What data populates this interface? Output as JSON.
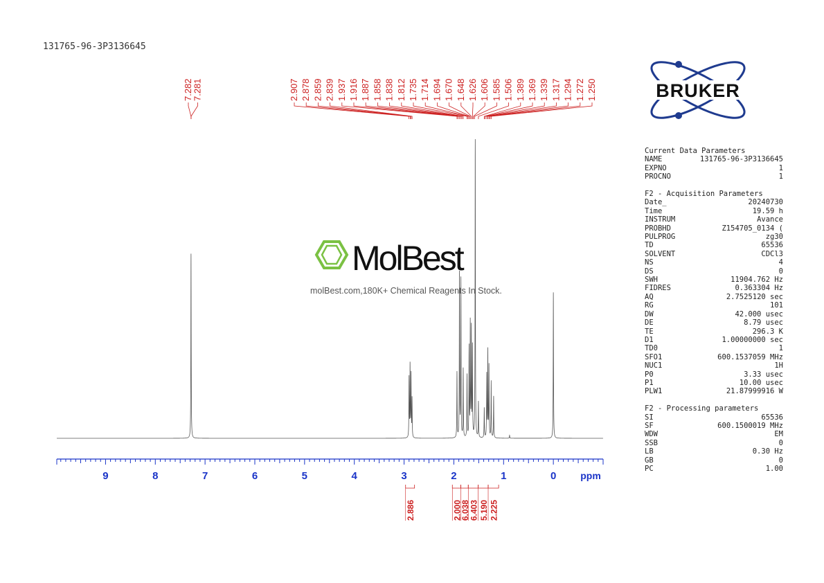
{
  "header": {
    "sample_id": "131765-96-3P3136645"
  },
  "watermark": {
    "brand": "MolBest",
    "tagline": "molBest.com,180K+ Chemical Reagents In Stock."
  },
  "logo": {
    "text": "BRUKER",
    "color": "#1f3b8f"
  },
  "colors": {
    "peak_label": "#cc1f1f",
    "axis": "#1a34c8",
    "spectrum": "#555555"
  },
  "chart_data": {
    "type": "line",
    "title": "",
    "xlabel": "ppm",
    "ylabel": "",
    "xlim": [
      9.98,
      -1.0
    ],
    "xlim_note": "reversed ppm axis",
    "x_ticks": [
      "9",
      "8",
      "7",
      "6",
      "5",
      "4",
      "3",
      "2",
      "1",
      "0"
    ],
    "grid": false,
    "peak_labels": [
      {
        "group": "aromatic",
        "values": [
          "7.282",
          "7.281"
        ]
      },
      {
        "group": "aliphatic",
        "values": [
          "2.907",
          "2.878",
          "2.859",
          "2.839",
          "1.937",
          "1.916",
          "1.887",
          "1.858",
          "1.838",
          "1.812",
          "1.735",
          "1.714",
          "1.694",
          "1.670",
          "1.648",
          "1.626",
          "1.606",
          "1.585",
          "1.506",
          "1.389",
          "1.369",
          "1.339",
          "1.317",
          "1.294",
          "1.272",
          "1.250"
        ]
      }
    ],
    "integrals": [
      {
        "label": "2.886",
        "from": 2.97,
        "to": 2.79
      },
      {
        "label": "2.000",
        "from": 2.03,
        "to": 1.86
      },
      {
        "label": "6.038",
        "from": 1.86,
        "to": 1.71
      },
      {
        "label": "6.403",
        "from": 1.71,
        "to": 1.51
      },
      {
        "label": "5.190",
        "from": 1.51,
        "to": 1.31
      },
      {
        "label": "2.225",
        "from": 1.31,
        "to": 1.1
      }
    ],
    "series": [
      {
        "values_are": "relative peak intensity (tallest = 1.0)",
        "peaks": [
          {
            "x": 7.282,
            "y": 0.62
          },
          {
            "x": 0.0,
            "y": 0.49
          },
          {
            "x": 2.9,
            "y": 0.2
          },
          {
            "x": 2.88,
            "y": 0.24
          },
          {
            "x": 2.86,
            "y": 0.21
          },
          {
            "x": 2.84,
            "y": 0.13
          },
          {
            "x": 1.937,
            "y": 0.22
          },
          {
            "x": 1.887,
            "y": 0.55
          },
          {
            "x": 1.858,
            "y": 0.53
          },
          {
            "x": 1.812,
            "y": 0.23
          },
          {
            "x": 1.735,
            "y": 0.21
          },
          {
            "x": 1.694,
            "y": 0.3
          },
          {
            "x": 1.67,
            "y": 0.38
          },
          {
            "x": 1.648,
            "y": 0.36
          },
          {
            "x": 1.626,
            "y": 0.3
          },
          {
            "x": 1.57,
            "y": 1.0
          },
          {
            "x": 1.506,
            "y": 0.12
          },
          {
            "x": 1.389,
            "y": 0.1
          },
          {
            "x": 1.339,
            "y": 0.21
          },
          {
            "x": 1.317,
            "y": 0.29
          },
          {
            "x": 1.294,
            "y": 0.24
          },
          {
            "x": 1.25,
            "y": 0.19
          },
          {
            "x": 1.2,
            "y": 0.14
          },
          {
            "x": 0.88,
            "y": 0.01
          }
        ]
      }
    ]
  },
  "parameters": {
    "sections": [
      {
        "title": "Current Data Parameters",
        "rows": [
          {
            "k": "NAME",
            "v": "131765-96-3P3136645"
          },
          {
            "k": "EXPNO",
            "v": "1"
          },
          {
            "k": "PROCNO",
            "v": "1"
          }
        ]
      },
      {
        "title": "F2 - Acquisition Parameters",
        "rows": [
          {
            "k": "Date_",
            "v": "20240730"
          },
          {
            "k": "Time",
            "v": "19.59 h"
          },
          {
            "k": "INSTRUM",
            "v": "Avance"
          },
          {
            "k": "PROBHD",
            "v": "Z154705_0134 ("
          },
          {
            "k": "PULPROG",
            "v": "zg30"
          },
          {
            "k": "TD",
            "v": "65536"
          },
          {
            "k": "SOLVENT",
            "v": "CDCl3"
          },
          {
            "k": "NS",
            "v": "4"
          },
          {
            "k": "DS",
            "v": "0"
          },
          {
            "k": "SWH",
            "v": "11904.762 Hz"
          },
          {
            "k": "FIDRES",
            "v": "0.363304 Hz"
          },
          {
            "k": "AQ",
            "v": "2.7525120 sec"
          },
          {
            "k": "RG",
            "v": "101"
          },
          {
            "k": "DW",
            "v": "42.000 usec"
          },
          {
            "k": "DE",
            "v": "8.79 usec"
          },
          {
            "k": "TE",
            "v": "296.3 K"
          },
          {
            "k": "D1",
            "v": "1.00000000 sec"
          },
          {
            "k": "TD0",
            "v": "1"
          },
          {
            "k": "SFO1",
            "v": "600.1537059 MHz"
          },
          {
            "k": "NUC1",
            "v": "1H"
          },
          {
            "k": "P0",
            "v": "3.33 usec"
          },
          {
            "k": "P1",
            "v": "10.00 usec"
          },
          {
            "k": "PLW1",
            "v": "21.87999916 W"
          }
        ]
      },
      {
        "title": "F2 - Processing parameters",
        "rows": [
          {
            "k": "SI",
            "v": "65536"
          },
          {
            "k": "SF",
            "v": "600.1500019 MHz"
          },
          {
            "k": "WDW",
            "v": "EM"
          },
          {
            "k": "SSB",
            "v": "0"
          },
          {
            "k": "LB",
            "v": "0.30 Hz"
          },
          {
            "k": "GB",
            "v": "0"
          },
          {
            "k": "PC",
            "v": "1.00"
          }
        ]
      }
    ]
  }
}
